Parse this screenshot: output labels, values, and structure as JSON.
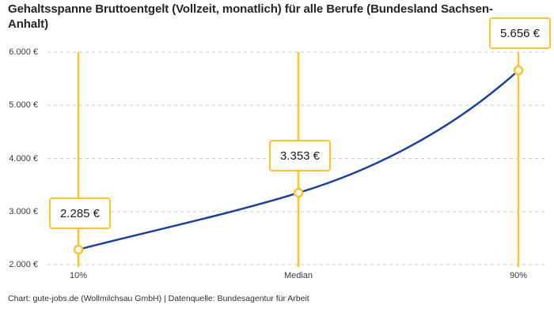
{
  "page": {
    "title": "Gehaltsspanne Bruttoentgelt (Vollzeit, monatlich) für alle Berufe (Bundesland Sachsen-Anhalt)",
    "source": "Chart: gute-jobs.de (Wollmilchsau GmbH) | Datenquelle: Bundesagentur für Arbeit"
  },
  "chart_data": {
    "type": "line",
    "title": "Gehaltsspanne Bruttoentgelt (Vollzeit, monatlich) für alle Berufe (Bundesland Sachsen-Anhalt)",
    "xlabel": "",
    "ylabel": "",
    "x_tick_labels": [
      "10%",
      "Median",
      "90%"
    ],
    "y_tick_labels": [
      "2.000 €",
      "3.000 €",
      "4.000 €",
      "5.000 €",
      "6.000 €"
    ],
    "y_tick_values": [
      2000,
      3000,
      4000,
      5000,
      6000
    ],
    "ylim": [
      2000,
      6000
    ],
    "grid": "horizontal-dashed",
    "legend": "none",
    "series": [
      {
        "name": "Bruttoentgelt",
        "points": [
          {
            "label": "10%",
            "value": 2285,
            "display": "2.285 €"
          },
          {
            "label": "Median",
            "value": 3353,
            "display": "3.353 €"
          },
          {
            "label": "90%",
            "value": 5656,
            "display": "5.656 €"
          }
        ]
      }
    ],
    "colors": {
      "line": "#1e3e9c",
      "accent": "#fcc42c",
      "grid": "#cbcbcb",
      "label_box_bg": "#ffffff",
      "text": "#1a1a1a"
    }
  }
}
